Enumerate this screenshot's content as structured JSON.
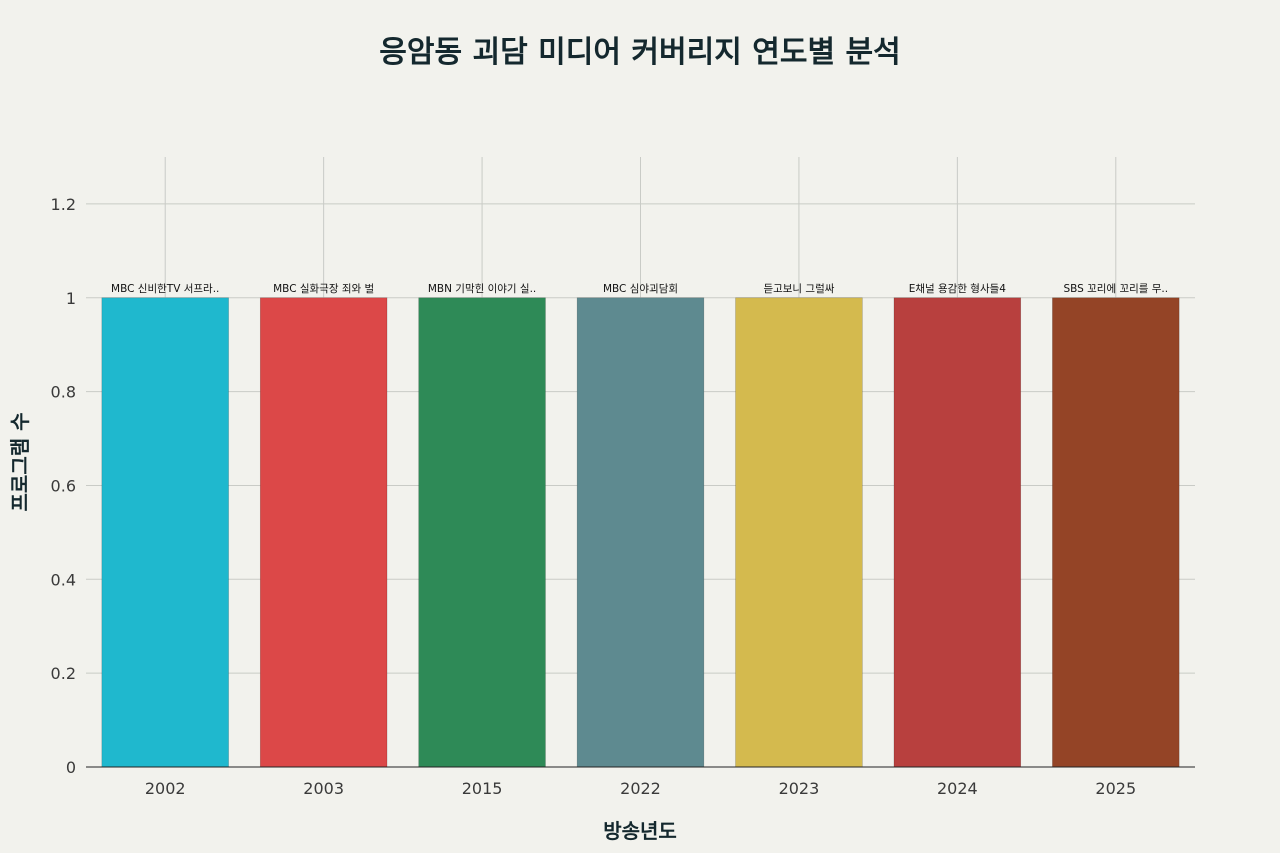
{
  "chart_data": {
    "type": "bar",
    "title": "응암동 괴담 미디어 커버리지 연도별 분석",
    "xlabel": "방송년도",
    "ylabel": "프로그램 수",
    "categories": [
      "2002",
      "2003",
      "2015",
      "2022",
      "2023",
      "2024",
      "2025"
    ],
    "values": [
      1,
      1,
      1,
      1,
      1,
      1,
      1
    ],
    "bar_labels": [
      "MBC 신비한TV 서프라..",
      "MBC 실화극장 죄와 벌",
      "MBN 기막힌 이야기 실..",
      "MBC 심야괴담회",
      "듣고보니 그럴싸",
      "E채널 용감한 형사들4",
      "SBS 꼬리에 꼬리를 무.."
    ],
    "colors": [
      "#1fb8ce",
      "#dc4848",
      "#2e8a57",
      "#5e8a90",
      "#d4ba4e",
      "#b8403e",
      "#944426"
    ],
    "ylim": [
      0,
      1.3
    ],
    "yticks": [
      0,
      0.2,
      0.4,
      0.6,
      0.8,
      1,
      1.2
    ],
    "ytick_labels": [
      "0",
      "0.2",
      "0.4",
      "0.6",
      "0.8",
      "1",
      "1.2"
    ],
    "grid": true,
    "legend": "none"
  }
}
